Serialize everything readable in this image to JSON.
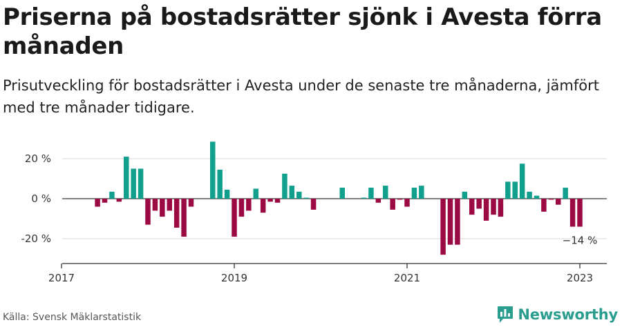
{
  "header": {
    "title": "Priserna på bostadsrätter sjönk i Avesta förra månaden",
    "subtitle": "Prisutveckling för bostadsrätter i Avesta under de senaste tre månaderna, jämfört med tre månader tidigare."
  },
  "footer": {
    "source": "Källa: Svensk Mäklarstatistik",
    "brand": "Newsworthy"
  },
  "colors": {
    "positive": "#12a08e",
    "negative": "#9c0a44",
    "grid": "#d9d9d9",
    "axis": "#333333",
    "brand": "#2a9d8f"
  },
  "chart_data": {
    "type": "bar",
    "x_start": "2017-01",
    "x_end": "2023-05",
    "ylim": [
      -32,
      32
    ],
    "y_ticks": [
      {
        "value": 20,
        "label": "20 %"
      },
      {
        "value": 0,
        "label": "0 %"
      },
      {
        "value": -20,
        "label": "-20 %"
      }
    ],
    "x_ticks": [
      {
        "date": "2017-01",
        "label": "2017"
      },
      {
        "date": "2019-01",
        "label": "2019"
      },
      {
        "date": "2021-01",
        "label": "2021"
      },
      {
        "date": "2023-01",
        "label": "2023"
      }
    ],
    "annotation": {
      "date": "2023-01",
      "value": -14,
      "label": "−14 %"
    },
    "series": [
      {
        "date": "2017-06",
        "value": -4
      },
      {
        "date": "2017-07",
        "value": -2
      },
      {
        "date": "2017-08",
        "value": 3.5
      },
      {
        "date": "2017-09",
        "value": -1.5
      },
      {
        "date": "2017-10",
        "value": 21
      },
      {
        "date": "2017-11",
        "value": 15
      },
      {
        "date": "2017-12",
        "value": 15
      },
      {
        "date": "2018-01",
        "value": -13
      },
      {
        "date": "2018-02",
        "value": -6
      },
      {
        "date": "2018-03",
        "value": -9
      },
      {
        "date": "2018-04",
        "value": -6
      },
      {
        "date": "2018-05",
        "value": -14.5
      },
      {
        "date": "2018-06",
        "value": -19
      },
      {
        "date": "2018-07",
        "value": -4
      },
      {
        "date": "2018-10",
        "value": 28.5
      },
      {
        "date": "2018-11",
        "value": 14.5
      },
      {
        "date": "2018-12",
        "value": 4.5
      },
      {
        "date": "2019-01",
        "value": -19
      },
      {
        "date": "2019-02",
        "value": -9
      },
      {
        "date": "2019-03",
        "value": -6
      },
      {
        "date": "2019-04",
        "value": 5
      },
      {
        "date": "2019-05",
        "value": -7
      },
      {
        "date": "2019-06",
        "value": -1.5
      },
      {
        "date": "2019-07",
        "value": -2
      },
      {
        "date": "2019-08",
        "value": 12.5
      },
      {
        "date": "2019-09",
        "value": 6.5
      },
      {
        "date": "2019-10",
        "value": 3.5
      },
      {
        "date": "2019-11",
        "value": 0.5
      },
      {
        "date": "2019-12",
        "value": -5.5
      },
      {
        "date": "2020-04",
        "value": 5.5
      },
      {
        "date": "2020-07",
        "value": 0.5
      },
      {
        "date": "2020-08",
        "value": 5.5
      },
      {
        "date": "2020-09",
        "value": -2
      },
      {
        "date": "2020-10",
        "value": 6.5
      },
      {
        "date": "2020-11",
        "value": -5.5
      },
      {
        "date": "2020-12",
        "value": -0.5
      },
      {
        "date": "2021-01",
        "value": -4
      },
      {
        "date": "2021-02",
        "value": 5.5
      },
      {
        "date": "2021-03",
        "value": 6.5
      },
      {
        "date": "2021-06",
        "value": -28
      },
      {
        "date": "2021-07",
        "value": -23
      },
      {
        "date": "2021-08",
        "value": -23
      },
      {
        "date": "2021-09",
        "value": 3.5
      },
      {
        "date": "2021-10",
        "value": -8
      },
      {
        "date": "2021-11",
        "value": -5
      },
      {
        "date": "2021-12",
        "value": -11
      },
      {
        "date": "2022-01",
        "value": -8
      },
      {
        "date": "2022-02",
        "value": -9
      },
      {
        "date": "2022-03",
        "value": 8.5
      },
      {
        "date": "2022-04",
        "value": 8.5
      },
      {
        "date": "2022-05",
        "value": 17.5
      },
      {
        "date": "2022-06",
        "value": 3.5
      },
      {
        "date": "2022-07",
        "value": 1.5
      },
      {
        "date": "2022-08",
        "value": -6.5
      },
      {
        "date": "2022-09",
        "value": -0.5
      },
      {
        "date": "2022-10",
        "value": -3
      },
      {
        "date": "2022-11",
        "value": 5.5
      },
      {
        "date": "2022-12",
        "value": -14
      },
      {
        "date": "2023-01",
        "value": -14
      }
    ]
  }
}
